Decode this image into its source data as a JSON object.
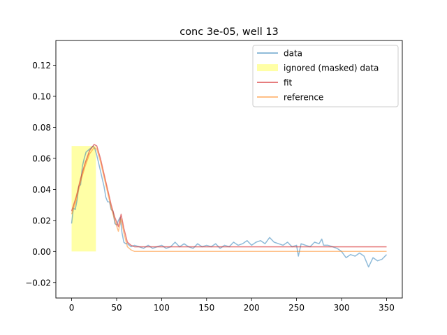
{
  "chart_data": {
    "type": "line",
    "title": "conc 3e-05, well 13",
    "xlabel": "",
    "ylabel": "",
    "xlim": [
      -17.5,
      367.5
    ],
    "ylim": [
      -0.03,
      0.136
    ],
    "xticks": [
      0,
      50,
      100,
      150,
      200,
      250,
      300,
      350
    ],
    "yticks": [
      -0.02,
      0.0,
      0.02,
      0.04,
      0.06,
      0.08,
      0.1,
      0.12
    ],
    "ytick_labels": [
      "−0.02",
      "0.00",
      "0.02",
      "0.04",
      "0.06",
      "0.08",
      "0.10",
      "0.12"
    ],
    "legend": {
      "placement": "top-right",
      "entries": [
        {
          "label": "data",
          "kind": "line",
          "color": "#1f77b4",
          "alpha": 0.5
        },
        {
          "label": "ignored (masked) data",
          "kind": "patch",
          "color": "#ffff00",
          "alpha": 0.35
        },
        {
          "label": "fit",
          "kind": "line",
          "color": "#d62728",
          "alpha": 0.6
        },
        {
          "label": "reference",
          "kind": "line",
          "color": "#ff7f0e",
          "alpha": 0.5
        }
      ]
    },
    "masked_region": {
      "x": [
        0,
        27
      ],
      "y": [
        0,
        0.068
      ]
    },
    "series": [
      {
        "name": "data",
        "color": "#1f77b4",
        "alpha": 0.5,
        "x": [
          0,
          2,
          4,
          6,
          8,
          10,
          12,
          14,
          16,
          18,
          20,
          22,
          24,
          26,
          28,
          30,
          32,
          34,
          36,
          38,
          40,
          42,
          44,
          46,
          48,
          50,
          52,
          54,
          56,
          58,
          60,
          62,
          64,
          66,
          70,
          75,
          80,
          85,
          90,
          95,
          100,
          105,
          110,
          115,
          120,
          125,
          130,
          135,
          140,
          145,
          150,
          155,
          160,
          165,
          170,
          175,
          180,
          185,
          190,
          195,
          200,
          205,
          210,
          215,
          220,
          225,
          230,
          235,
          240,
          245,
          250,
          252,
          255,
          260,
          265,
          270,
          275,
          278,
          280,
          285,
          290,
          295,
          300,
          305,
          310,
          315,
          320,
          325,
          330,
          335,
          340,
          345,
          350
        ],
        "y": [
          0.018,
          0.028,
          0.027,
          0.033,
          0.042,
          0.043,
          0.055,
          0.06,
          0.064,
          0.065,
          0.066,
          0.067,
          0.068,
          0.066,
          0.062,
          0.057,
          0.052,
          0.047,
          0.042,
          0.035,
          0.032,
          0.032,
          0.027,
          0.026,
          0.018,
          0.017,
          0.02,
          0.022,
          0.012,
          0.006,
          0.005,
          0.005,
          0.004,
          0.003,
          0.004,
          0.003,
          0.002,
          0.004,
          0.002,
          0.003,
          0.004,
          0.002,
          0.003,
          0.006,
          0.003,
          0.005,
          0.003,
          0.002,
          0.005,
          0.003,
          0.004,
          0.003,
          0.005,
          0.002,
          0.004,
          0.003,
          0.006,
          0.004,
          0.005,
          0.007,
          0.004,
          0.006,
          0.007,
          0.005,
          0.009,
          0.006,
          0.005,
          0.004,
          0.006,
          0.003,
          0.004,
          -0.003,
          0.005,
          0.004,
          0.003,
          0.006,
          0.005,
          0.008,
          0.004,
          0.004,
          0.003,
          0.002,
          0.0,
          -0.004,
          -0.002,
          -0.003,
          -0.001,
          -0.003,
          -0.01,
          -0.004,
          -0.006,
          -0.005,
          -0.002
        ]
      },
      {
        "name": "fit",
        "color": "#d62728",
        "alpha": 0.6,
        "x": [
          0,
          5,
          10,
          15,
          20,
          25,
          28,
          32,
          36,
          40,
          44,
          48,
          52,
          55,
          58,
          62,
          66,
          70,
          80,
          100,
          150,
          200,
          250,
          300,
          350
        ],
        "y": [
          0.026,
          0.035,
          0.047,
          0.057,
          0.065,
          0.069,
          0.068,
          0.06,
          0.05,
          0.04,
          0.03,
          0.022,
          0.016,
          0.024,
          0.015,
          0.006,
          0.004,
          0.003,
          0.003,
          0.003,
          0.003,
          0.003,
          0.003,
          0.003,
          0.003
        ]
      },
      {
        "name": "reference",
        "color": "#ff7f0e",
        "alpha": 0.5,
        "x": [
          0,
          5,
          10,
          15,
          20,
          25,
          28,
          32,
          36,
          40,
          44,
          48,
          52,
          55,
          58,
          62,
          66,
          70,
          80,
          100,
          150,
          200,
          250,
          300,
          350
        ],
        "y": [
          0.024,
          0.033,
          0.045,
          0.055,
          0.063,
          0.067,
          0.066,
          0.058,
          0.048,
          0.038,
          0.028,
          0.02,
          0.013,
          0.021,
          0.012,
          0.003,
          0.001,
          0.0,
          0.0,
          0.0,
          0.0,
          0.0,
          0.0,
          0.0,
          0.0
        ]
      }
    ]
  }
}
